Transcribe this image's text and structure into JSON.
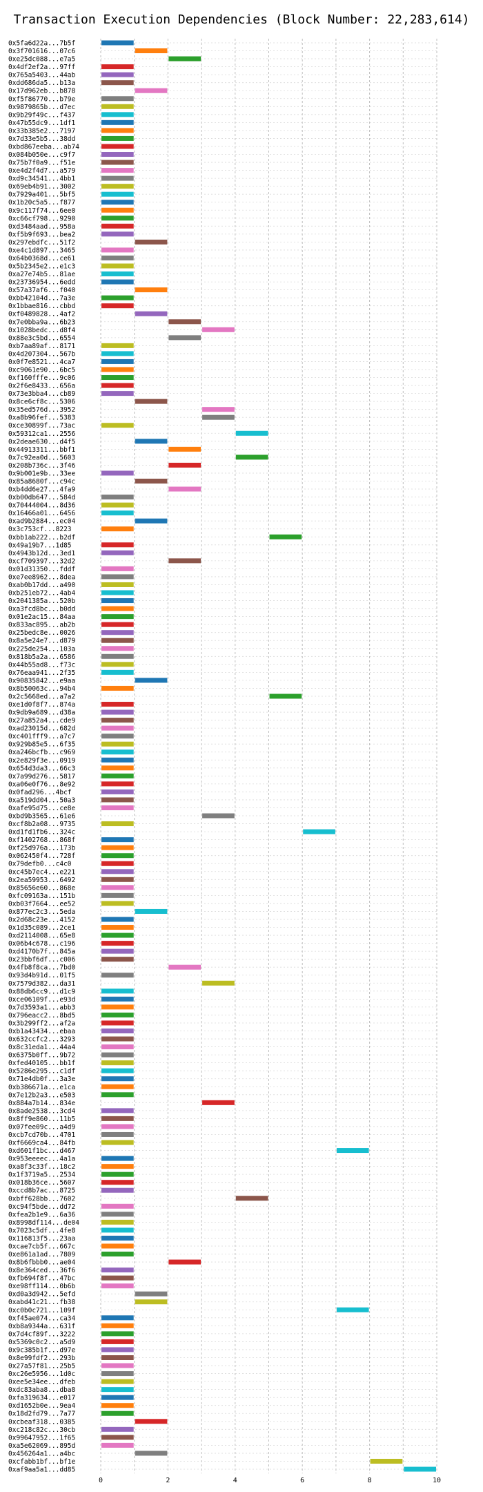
{
  "chart_data": {
    "type": "bar",
    "orientation": "horizontal",
    "title": "Transaction Execution Dependencies (Block Number: 22,283,614)",
    "xlabel": "",
    "ylabel": "",
    "xlim": [
      0,
      10
    ],
    "xticks": [
      0,
      2,
      4,
      6,
      8,
      10
    ],
    "grid": "x-dashed",
    "colors": [
      "#1f77b4",
      "#ff7f0e",
      "#2ca02c",
      "#d62728",
      "#9467bd",
      "#8c564b",
      "#e377c2",
      "#7f7f7f",
      "#bcbd22",
      "#17becf"
    ],
    "transactions": [
      {
        "hash": "0x5fa6d22a...7b5f",
        "start": 0,
        "end": 1
      },
      {
        "hash": "0x3f701616...07c6",
        "start": 1,
        "end": 2
      },
      {
        "hash": "0xe25dc088...e7a5",
        "start": 2,
        "end": 3
      },
      {
        "hash": "0x4df2ef2a...97ff",
        "start": 0,
        "end": 1
      },
      {
        "hash": "0x765a5403...44ab",
        "start": 0,
        "end": 1
      },
      {
        "hash": "0xdd686da5...b13a",
        "start": 0,
        "end": 1
      },
      {
        "hash": "0x17d962eb...b878",
        "start": 1,
        "end": 2
      },
      {
        "hash": "0xf5f86770...b79e",
        "start": 0,
        "end": 1
      },
      {
        "hash": "0x9879865b...d7ec",
        "start": 0,
        "end": 1
      },
      {
        "hash": "0x9b29f49c...f437",
        "start": 0,
        "end": 1
      },
      {
        "hash": "0x47b55dc9...1df1",
        "start": 0,
        "end": 1
      },
      {
        "hash": "0x33b385e2...7197",
        "start": 0,
        "end": 1
      },
      {
        "hash": "0x7d33e5b5...38dd",
        "start": 0,
        "end": 1
      },
      {
        "hash": "0xbd867eeba...ab74",
        "start": 0,
        "end": 1
      },
      {
        "hash": "0x084b050e...c9f7",
        "start": 0,
        "end": 1
      },
      {
        "hash": "0x75b7f0a9...f51e",
        "start": 0,
        "end": 1
      },
      {
        "hash": "0xe4d2f4d7...a579",
        "start": 0,
        "end": 1
      },
      {
        "hash": "0xd9c34541...4bb1",
        "start": 0,
        "end": 1
      },
      {
        "hash": "0x69eb4b91...3002",
        "start": 0,
        "end": 1
      },
      {
        "hash": "0x7929a401...5bf5",
        "start": 0,
        "end": 1
      },
      {
        "hash": "0x1b20c5a5...f877",
        "start": 0,
        "end": 1
      },
      {
        "hash": "0x9c117f74...6ee0",
        "start": 0,
        "end": 1
      },
      {
        "hash": "0xc66cf798...9290",
        "start": 0,
        "end": 1
      },
      {
        "hash": "0xd3484aad...958a",
        "start": 0,
        "end": 1
      },
      {
        "hash": "0xf5b9f693...bea2",
        "start": 0,
        "end": 1
      },
      {
        "hash": "0x297ebdfc...51f2",
        "start": 1,
        "end": 2
      },
      {
        "hash": "0xe4c1d897...3465",
        "start": 0,
        "end": 1
      },
      {
        "hash": "0x64b0368d...ce61",
        "start": 0,
        "end": 1
      },
      {
        "hash": "0x5b2345e2...e1c3",
        "start": 0,
        "end": 1
      },
      {
        "hash": "0xa27e74b5...81ae",
        "start": 0,
        "end": 1
      },
      {
        "hash": "0x23736954...6edd",
        "start": 0,
        "end": 1
      },
      {
        "hash": "0x57a37af6...f040",
        "start": 1,
        "end": 2
      },
      {
        "hash": "0xbb42104d...7a3e",
        "start": 0,
        "end": 1
      },
      {
        "hash": "0x1bbae816...cbbd",
        "start": 0,
        "end": 1
      },
      {
        "hash": "0xf0489828...4af2",
        "start": 1,
        "end": 2
      },
      {
        "hash": "0x7e0bba9a...6b23",
        "start": 2,
        "end": 3
      },
      {
        "hash": "0x1028bedc...d8f4",
        "start": 3,
        "end": 4
      },
      {
        "hash": "0x88e3c5bd...6554",
        "start": 2,
        "end": 3
      },
      {
        "hash": "0xb7aa89af...8171",
        "start": 0,
        "end": 1
      },
      {
        "hash": "0x4d207304...567b",
        "start": 0,
        "end": 1
      },
      {
        "hash": "0x0f7e8521...4ca7",
        "start": 0,
        "end": 1
      },
      {
        "hash": "0xc9061e90...6bc5",
        "start": 0,
        "end": 1
      },
      {
        "hash": "0xf160fffe...9c06",
        "start": 0,
        "end": 1
      },
      {
        "hash": "0x2f6e8433...656a",
        "start": 0,
        "end": 1
      },
      {
        "hash": "0x73e3bba4...cb89",
        "start": 0,
        "end": 1
      },
      {
        "hash": "0x8ce6cf8c...5306",
        "start": 1,
        "end": 2
      },
      {
        "hash": "0x35ed576d...3952",
        "start": 3,
        "end": 4
      },
      {
        "hash": "0xa8b96fef...5383",
        "start": 3,
        "end": 4
      },
      {
        "hash": "0xce30899f...73ac",
        "start": 0,
        "end": 1
      },
      {
        "hash": "0x59312ca1...2556",
        "start": 4,
        "end": 5
      },
      {
        "hash": "0x2deae630...d4f5",
        "start": 1,
        "end": 2
      },
      {
        "hash": "0x44913311...bbf1",
        "start": 2,
        "end": 3
      },
      {
        "hash": "0x7c92ea0d...5603",
        "start": 4,
        "end": 5
      },
      {
        "hash": "0x208b736c...3f46",
        "start": 2,
        "end": 3
      },
      {
        "hash": "0x9b001e9b...33ee",
        "start": 0,
        "end": 1
      },
      {
        "hash": "0x85a8680f...c94c",
        "start": 1,
        "end": 2
      },
      {
        "hash": "0xb4dd6e27...4fa9",
        "start": 2,
        "end": 3
      },
      {
        "hash": "0xb00db647...584d",
        "start": 0,
        "end": 1
      },
      {
        "hash": "0x70444004...8d36",
        "start": 0,
        "end": 1
      },
      {
        "hash": "0x16466a01...6456",
        "start": 0,
        "end": 1
      },
      {
        "hash": "0xad9b2884...ec04",
        "start": 1,
        "end": 2
      },
      {
        "hash": "0x3c753cf...8223",
        "start": 0,
        "end": 1
      },
      {
        "hash": "0xbb1ab222...b2df",
        "start": 5,
        "end": 6
      },
      {
        "hash": "0x49a19b7...1d85",
        "start": 0,
        "end": 1
      },
      {
        "hash": "0x4943b12d...3ed1",
        "start": 0,
        "end": 1
      },
      {
        "hash": "0xcf709397...32d2",
        "start": 2,
        "end": 3
      },
      {
        "hash": "0x01d31350...fddf",
        "start": 0,
        "end": 1
      },
      {
        "hash": "0xe7ee8962...8dea",
        "start": 0,
        "end": 1
      },
      {
        "hash": "0xab0b17dd...a490",
        "start": 0,
        "end": 1
      },
      {
        "hash": "0xb251eb72...4ab4",
        "start": 0,
        "end": 1
      },
      {
        "hash": "0x2041385a...520b",
        "start": 0,
        "end": 1
      },
      {
        "hash": "0xa3fcd8bc...b0dd",
        "start": 0,
        "end": 1
      },
      {
        "hash": "0x01e2ac15...84aa",
        "start": 0,
        "end": 1
      },
      {
        "hash": "0x833ac895...ab2b",
        "start": 0,
        "end": 1
      },
      {
        "hash": "0x25bedc8e...0026",
        "start": 0,
        "end": 1
      },
      {
        "hash": "0x8a5e24e7...d879",
        "start": 0,
        "end": 1
      },
      {
        "hash": "0x225de254...103a",
        "start": 0,
        "end": 1
      },
      {
        "hash": "0x818b5a2a...6586",
        "start": 0,
        "end": 1
      },
      {
        "hash": "0x44b55ad8...f73c",
        "start": 0,
        "end": 1
      },
      {
        "hash": "0x76eaa941...2f35",
        "start": 0,
        "end": 1
      },
      {
        "hash": "0x90835842...e9aa",
        "start": 1,
        "end": 2
      },
      {
        "hash": "0x8b50063c...94b4",
        "start": 0,
        "end": 1
      },
      {
        "hash": "0x2c5668ed...a7a2",
        "start": 5,
        "end": 6
      },
      {
        "hash": "0xe1d0f8f7...874a",
        "start": 0,
        "end": 1
      },
      {
        "hash": "0x9db9a689...d38a",
        "start": 0,
        "end": 1
      },
      {
        "hash": "0x27a852a4...cde9",
        "start": 0,
        "end": 1
      },
      {
        "hash": "0xad23015d...682d",
        "start": 0,
        "end": 1
      },
      {
        "hash": "0xc401fff9...a7c7",
        "start": 0,
        "end": 1
      },
      {
        "hash": "0x929b85e5...6f35",
        "start": 0,
        "end": 1
      },
      {
        "hash": "0xa246bcfb...c969",
        "start": 0,
        "end": 1
      },
      {
        "hash": "0x2e829f3e...0919",
        "start": 0,
        "end": 1
      },
      {
        "hash": "0x654d3da3...66c3",
        "start": 0,
        "end": 1
      },
      {
        "hash": "0x7a99d276...5817",
        "start": 0,
        "end": 1
      },
      {
        "hash": "0xa06e0f76...8e92",
        "start": 0,
        "end": 1
      },
      {
        "hash": "0x0fad296...4bcf",
        "start": 0,
        "end": 1
      },
      {
        "hash": "0xa519dd04...50a3",
        "start": 0,
        "end": 1
      },
      {
        "hash": "0xafe95d75...ce8e",
        "start": 0,
        "end": 1
      },
      {
        "hash": "0xbd9b3565...61e6",
        "start": 3,
        "end": 4
      },
      {
        "hash": "0xcf8b2a08...9735",
        "start": 0,
        "end": 1
      },
      {
        "hash": "0xd1fd1fb6...324c",
        "start": 6,
        "end": 7
      },
      {
        "hash": "0xf1402768...868f",
        "start": 0,
        "end": 1
      },
      {
        "hash": "0xf25d976a...173b",
        "start": 0,
        "end": 1
      },
      {
        "hash": "0x062450f4...728f",
        "start": 0,
        "end": 1
      },
      {
        "hash": "0x79defb0...c4c0",
        "start": 0,
        "end": 1
      },
      {
        "hash": "0xc45b7ec4...e221",
        "start": 0,
        "end": 1
      },
      {
        "hash": "0x2ea59953...6492",
        "start": 0,
        "end": 1
      },
      {
        "hash": "0x85656e60...868e",
        "start": 0,
        "end": 1
      },
      {
        "hash": "0xfc09163a...151b",
        "start": 0,
        "end": 1
      },
      {
        "hash": "0xb03f7664...ee52",
        "start": 0,
        "end": 1
      },
      {
        "hash": "0x877ec2c3...5eda",
        "start": 1,
        "end": 2
      },
      {
        "hash": "0x2d68c23e...4152",
        "start": 0,
        "end": 1
      },
      {
        "hash": "0x1d35c089...2ce1",
        "start": 0,
        "end": 1
      },
      {
        "hash": "0xd2114008...65e8",
        "start": 0,
        "end": 1
      },
      {
        "hash": "0x06b4c678...c196",
        "start": 0,
        "end": 1
      },
      {
        "hash": "0xd4170b7f...845a",
        "start": 0,
        "end": 1
      },
      {
        "hash": "0x23bbf6df...c006",
        "start": 0,
        "end": 1
      },
      {
        "hash": "0x4fb8f8ca...7bd0",
        "start": 2,
        "end": 3
      },
      {
        "hash": "0x93d4b91d...01f5",
        "start": 0,
        "end": 1
      },
      {
        "hash": "0x7579d382...da31",
        "start": 3,
        "end": 4
      },
      {
        "hash": "0x88db6cc9...d1c9",
        "start": 0,
        "end": 1
      },
      {
        "hash": "0xce06109f...e93d",
        "start": 0,
        "end": 1
      },
      {
        "hash": "0x7d3593a1...abb3",
        "start": 0,
        "end": 1
      },
      {
        "hash": "0x796eacc2...8bd5",
        "start": 0,
        "end": 1
      },
      {
        "hash": "0x3b299ff2...af2a",
        "start": 0,
        "end": 1
      },
      {
        "hash": "0xb1a43434...ebaa",
        "start": 0,
        "end": 1
      },
      {
        "hash": "0x632ccfc2...3293",
        "start": 0,
        "end": 1
      },
      {
        "hash": "0x8c31eda1...44a4",
        "start": 0,
        "end": 1
      },
      {
        "hash": "0x6375b0ff...9b72",
        "start": 0,
        "end": 1
      },
      {
        "hash": "0xfed40105...bb1f",
        "start": 0,
        "end": 1
      },
      {
        "hash": "0x5286e295...c1df",
        "start": 0,
        "end": 1
      },
      {
        "hash": "0x71e4db0f...3a3e",
        "start": 0,
        "end": 1
      },
      {
        "hash": "0xb386671a...e1ca",
        "start": 0,
        "end": 1
      },
      {
        "hash": "0x7e12b2a3...e503",
        "start": 0,
        "end": 1
      },
      {
        "hash": "0x884a7b14...834e",
        "start": 3,
        "end": 4
      },
      {
        "hash": "0x8ade2538...3cd4",
        "start": 0,
        "end": 1
      },
      {
        "hash": "0x8ff9e860...11b5",
        "start": 0,
        "end": 1
      },
      {
        "hash": "0x07fee09c...a4d9",
        "start": 0,
        "end": 1
      },
      {
        "hash": "0xcb7cd70b...4701",
        "start": 0,
        "end": 1
      },
      {
        "hash": "0xf6669ca4...84fb",
        "start": 0,
        "end": 1
      },
      {
        "hash": "0xd601f1bc...d467",
        "start": 7,
        "end": 8
      },
      {
        "hash": "0x953eeeec...4a1a",
        "start": 0,
        "end": 1
      },
      {
        "hash": "0xa8f3c33f...18c2",
        "start": 0,
        "end": 1
      },
      {
        "hash": "0x1f3719a5...2534",
        "start": 0,
        "end": 1
      },
      {
        "hash": "0x018b36ce...5607",
        "start": 0,
        "end": 1
      },
      {
        "hash": "0xccd8b7ac...8725",
        "start": 0,
        "end": 1
      },
      {
        "hash": "0xbff628bb...7602",
        "start": 4,
        "end": 5
      },
      {
        "hash": "0xc94f5bde...dd72",
        "start": 0,
        "end": 1
      },
      {
        "hash": "0xfea2b1e9...6a36",
        "start": 0,
        "end": 1
      },
      {
        "hash": "0x8998df114...de04",
        "start": 0,
        "end": 1
      },
      {
        "hash": "0x7023c5df...4fe8",
        "start": 0,
        "end": 1
      },
      {
        "hash": "0x116813f5...23aa",
        "start": 0,
        "end": 1
      },
      {
        "hash": "0xcae7cb5f...667c",
        "start": 0,
        "end": 1
      },
      {
        "hash": "0xe861a1ad...7809",
        "start": 0,
        "end": 1
      },
      {
        "hash": "0x8b6fbbb0...ae04",
        "start": 2,
        "end": 3
      },
      {
        "hash": "0x8e364ced...36f6",
        "start": 0,
        "end": 1
      },
      {
        "hash": "0xfb694f8f...47bc",
        "start": 0,
        "end": 1
      },
      {
        "hash": "0xe98ff114...0b6b",
        "start": 0,
        "end": 1
      },
      {
        "hash": "0xd0a3d942...5efd",
        "start": 1,
        "end": 2
      },
      {
        "hash": "0xabd41c21...fb38",
        "start": 1,
        "end": 2
      },
      {
        "hash": "0xc0b0c721...109f",
        "start": 7,
        "end": 8
      },
      {
        "hash": "0xf45ae074...ca34",
        "start": 0,
        "end": 1
      },
      {
        "hash": "0xb8a9344a...631f",
        "start": 0,
        "end": 1
      },
      {
        "hash": "0x7d4cf89f...3222",
        "start": 0,
        "end": 1
      },
      {
        "hash": "0x5369c0c2...a5d9",
        "start": 0,
        "end": 1
      },
      {
        "hash": "0x9c385b1f...d97e",
        "start": 0,
        "end": 1
      },
      {
        "hash": "0x8e99fdf2...293b",
        "start": 0,
        "end": 1
      },
      {
        "hash": "0x27a57f81...25b5",
        "start": 0,
        "end": 1
      },
      {
        "hash": "0xc26e5956...1d0c",
        "start": 0,
        "end": 1
      },
      {
        "hash": "0xee5e34ee...dfeb",
        "start": 0,
        "end": 1
      },
      {
        "hash": "0xdc83aba8...dba8",
        "start": 0,
        "end": 1
      },
      {
        "hash": "0xfa319634...e017",
        "start": 0,
        "end": 1
      },
      {
        "hash": "0xd1652b0e...9ea4",
        "start": 0,
        "end": 1
      },
      {
        "hash": "0x18d2fd79...7a77",
        "start": 0,
        "end": 1
      },
      {
        "hash": "0xcbeaf318...0385",
        "start": 1,
        "end": 2
      },
      {
        "hash": "0xc218c82c...30cb",
        "start": 0,
        "end": 1
      },
      {
        "hash": "0x99647952...1f65",
        "start": 0,
        "end": 1
      },
      {
        "hash": "0xa5e62069...895d",
        "start": 0,
        "end": 1
      },
      {
        "hash": "0x456264a1...a4bc",
        "start": 1,
        "end": 2
      },
      {
        "hash": "0xcfabb1bf...bf1e",
        "start": 8,
        "end": 9
      },
      {
        "hash": "0xaf9aa5a1...dd85",
        "start": 9,
        "end": 10
      }
    ]
  }
}
